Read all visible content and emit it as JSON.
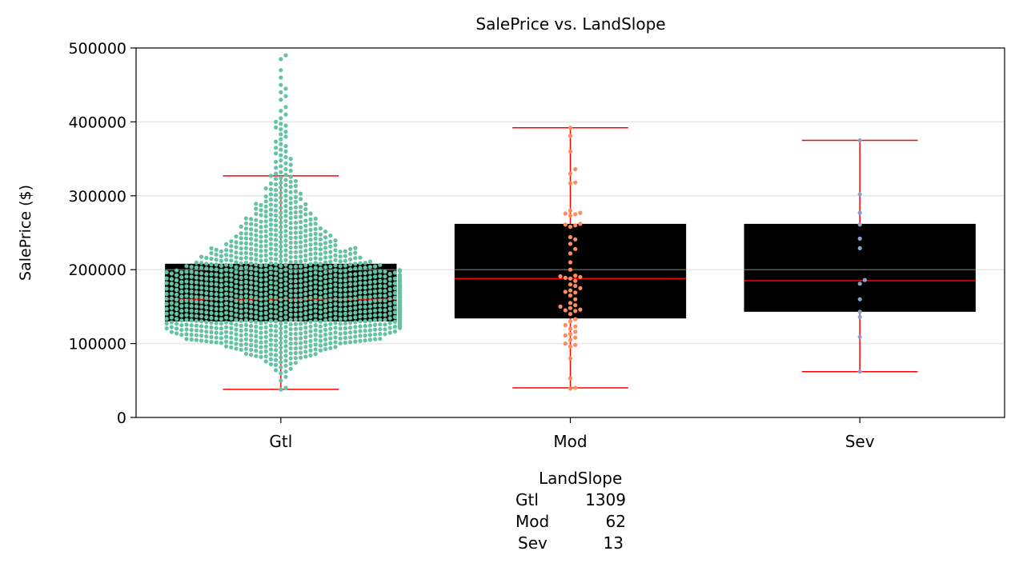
{
  "chart_data": {
    "type": "box",
    "title": "SalePrice vs. LandSlope",
    "xlabel": "",
    "ylabel": "SalePrice ($)",
    "ylim": [
      0,
      500000
    ],
    "yticks": [
      0,
      100000,
      200000,
      300000,
      400000,
      500000
    ],
    "ytick_labels": [
      "0",
      "100000",
      "200000",
      "300000",
      "400000",
      "500000"
    ],
    "grid": "horizontal",
    "categories": [
      "Gtl",
      "Mod",
      "Sev"
    ],
    "colors": {
      "Gtl": "#66c2a5",
      "Mod": "#fc8d62",
      "Sev": "#8da0cb",
      "box": "#000000",
      "whisker": "#ff0000",
      "median": "#ff0000"
    },
    "boxes": [
      {
        "category": "Gtl",
        "whisker_low": 38000,
        "q1": 130000,
        "median": 160000,
        "q3": 208000,
        "whisker_high": 327000
      },
      {
        "category": "Mod",
        "whisker_low": 40000,
        "q1": 134000,
        "median": 188000,
        "q3": 262000,
        "whisker_high": 392000
      },
      {
        "category": "Sev",
        "whisker_low": 62000,
        "q1": 143000,
        "median": 185000,
        "q3": 262000,
        "whisker_high": 375000
      }
    ],
    "points": {
      "Mod": [
        392000,
        381000,
        360000,
        336000,
        330000,
        318000,
        317000,
        280000,
        277000,
        276000,
        275000,
        273000,
        262000,
        261000,
        260000,
        258000,
        244000,
        241000,
        235000,
        228000,
        222000,
        210000,
        200000,
        192000,
        191000,
        190000,
        189000,
        188000,
        185000,
        180000,
        178000,
        175000,
        172000,
        170000,
        169000,
        165000,
        160000,
        155000,
        152000,
        150000,
        148000,
        146000,
        145000,
        144000,
        140000,
        133000,
        130000,
        125000,
        123000,
        120000,
        116000,
        113000,
        111000,
        108000,
        105000,
        100000,
        98000,
        96000,
        80000,
        53000,
        40000,
        39000
      ],
      "Sev": [
        375000,
        302000,
        277000,
        261000,
        242000,
        229000,
        186000,
        181000,
        160000,
        143000,
        136000,
        109000,
        62000
      ]
    }
  },
  "counts_table": {
    "header": "LandSlope",
    "rows": [
      {
        "category": "Gtl",
        "count": "1309"
      },
      {
        "category": "Mod",
        "count": "62"
      },
      {
        "category": "Sev",
        "count": "13"
      }
    ]
  }
}
